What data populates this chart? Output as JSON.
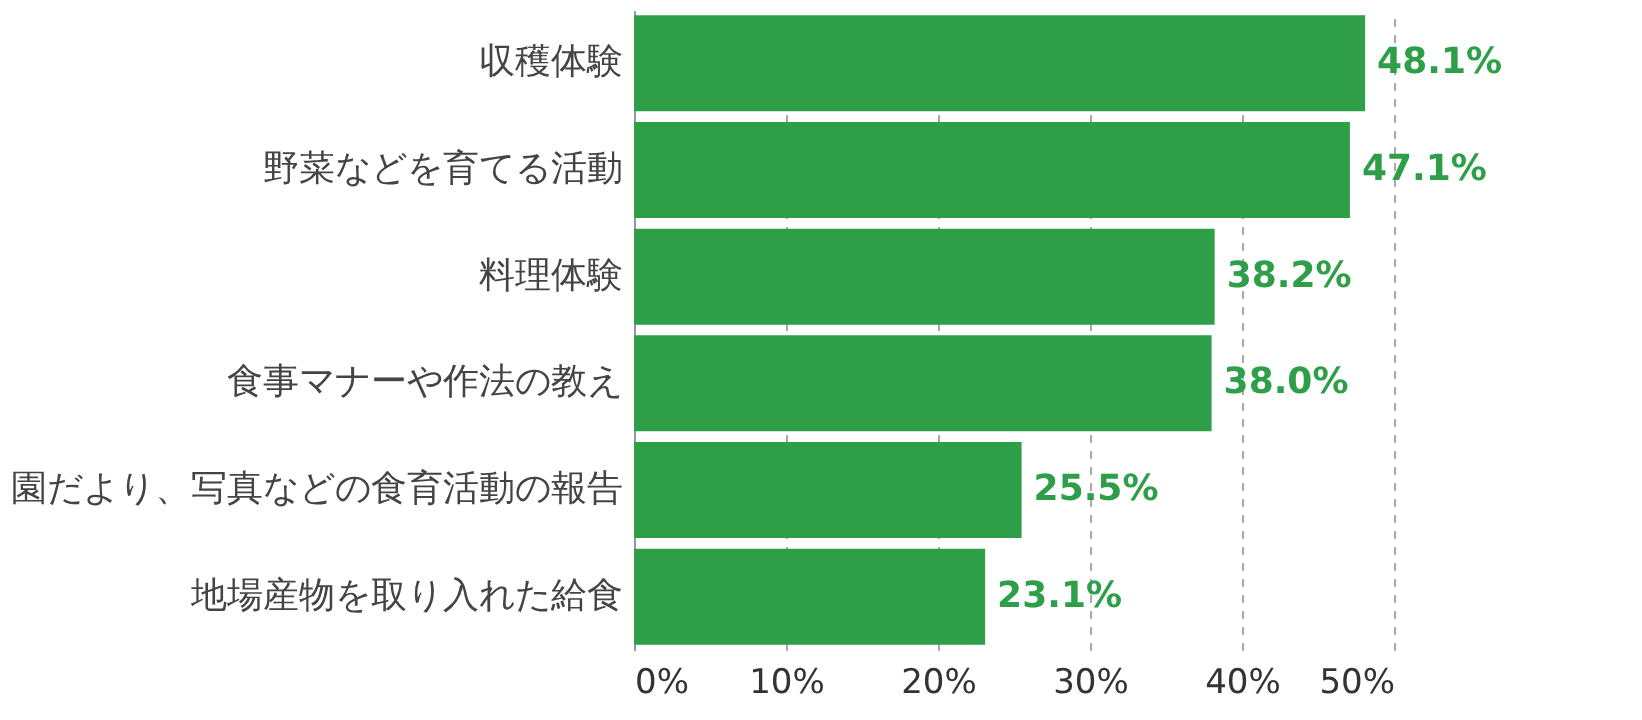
{
  "chart_data": {
    "type": "bar",
    "orientation": "horizontal",
    "categories": [
      "収穫体験",
      "野菜などを育てる活動",
      "料理体験",
      "食事マナーや作法の教え",
      "園だより、写真などの食育活動の報告",
      "地場産物を取り入れた給食"
    ],
    "values": [
      48.1,
      47.1,
      38.2,
      38.0,
      25.5,
      23.1
    ],
    "value_labels": [
      "48.1%",
      "47.1%",
      "38.2%",
      "38.0%",
      "25.5%",
      "23.1%"
    ],
    "color": "#2e9e48",
    "xlim": [
      0,
      50
    ],
    "xticks": [
      {
        "value": 0,
        "label": "0%"
      },
      {
        "value": 10,
        "label": "10%"
      },
      {
        "value": 20,
        "label": "20%"
      },
      {
        "value": 30,
        "label": "30%"
      },
      {
        "value": 40,
        "label": "40%"
      },
      {
        "value": 50,
        "label": "50%"
      }
    ],
    "grid": "x"
  }
}
